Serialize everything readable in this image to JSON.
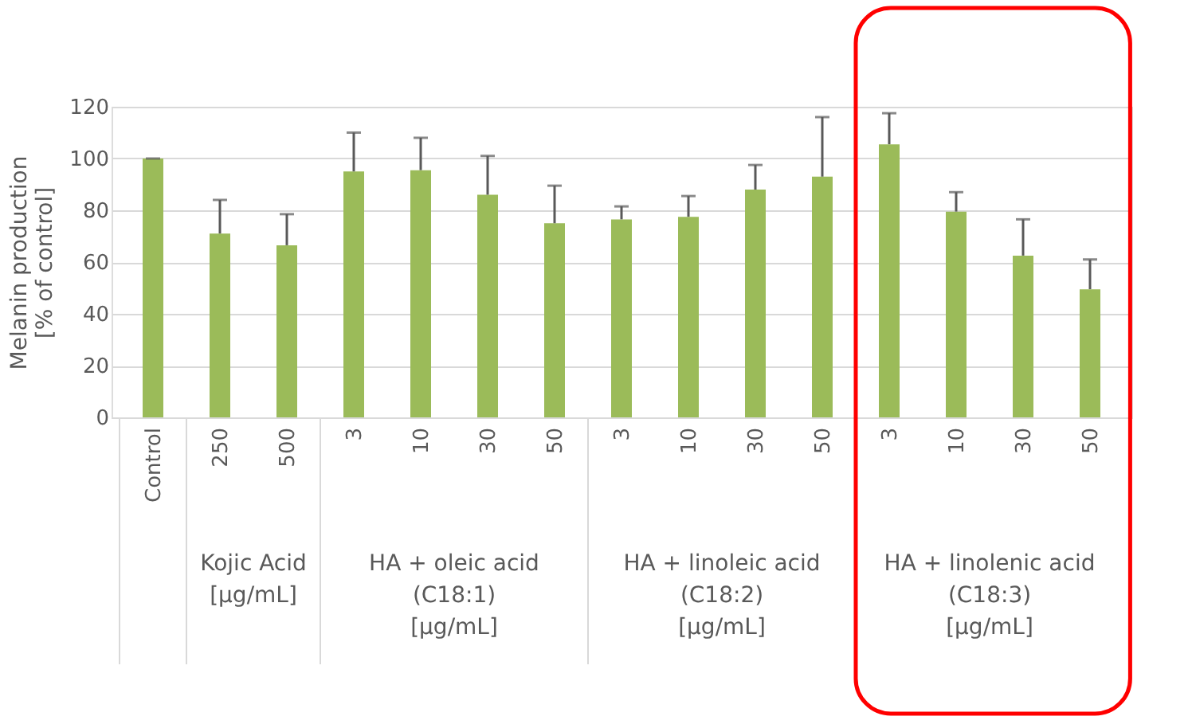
{
  "chart_data": {
    "type": "bar",
    "ylabel": "Melanin production\n[% of control]",
    "categories": [
      "Control",
      "250",
      "500",
      "3",
      "10",
      "30",
      "50",
      "3",
      "10",
      "30",
      "50",
      "3",
      "10",
      "30",
      "50"
    ],
    "values": [
      100,
      71,
      66.5,
      95,
      95.5,
      86,
      75,
      76.5,
      77.5,
      88,
      93,
      105.5,
      79.5,
      62.5,
      49.5
    ],
    "color": "#9bbb59",
    "errors": [
      [
        100,
        100
      ],
      [
        71,
        84
      ],
      [
        66.5,
        78.5
      ],
      [
        95,
        110
      ],
      [
        95.5,
        108
      ],
      [
        86,
        101
      ],
      [
        75,
        89.5
      ],
      [
        76.5,
        81.5
      ],
      [
        77.5,
        85.5
      ],
      [
        88,
        97.5
      ],
      [
        93,
        116
      ],
      [
        105.5,
        117.5
      ],
      [
        79.5,
        87
      ],
      [
        62.5,
        76.5
      ],
      [
        49.5,
        61
      ]
    ],
    "ylim": [
      0,
      120
    ],
    "yticks": [
      0,
      20,
      40,
      60,
      80,
      100,
      120
    ],
    "grid": "y",
    "annotations": [
      "Kojic Acid\n[µg/mL]",
      "HA + oleic acid\n(C18:1)\n[µg/mL]",
      "HA + linoleic acid\n(C18:2)\n[µg/mL]",
      "HA + linolenic acid\n(C18:3)\n[µg/mL]"
    ]
  }
}
